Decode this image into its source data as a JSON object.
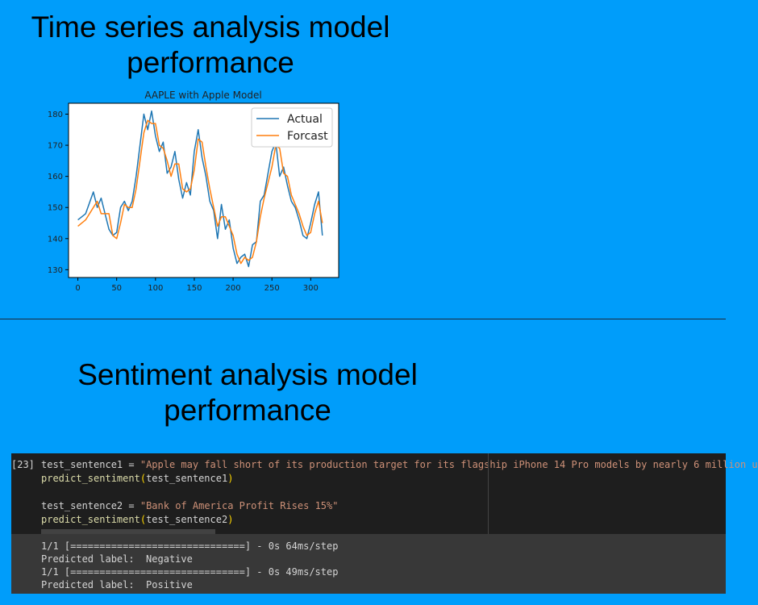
{
  "headings": {
    "time_series": [
      "Time series analysis model",
      "performance"
    ],
    "sentiment": [
      "Sentiment analysis model",
      "performance"
    ]
  },
  "chart_data": {
    "type": "line",
    "title": "AAPLE with Apple Model",
    "xlabel": "",
    "ylabel": "",
    "xlim": [
      -12,
      336
    ],
    "ylim": [
      127.5,
      183.5
    ],
    "xticks": [
      0,
      50,
      100,
      150,
      200,
      250,
      300
    ],
    "yticks": [
      130,
      140,
      150,
      160,
      170,
      180
    ],
    "legend_position": "top-right",
    "grid": false,
    "series": [
      {
        "name": "Actual",
        "color": "#1f77b4",
        "x": [
          0,
          10,
          20,
          25,
          30,
          40,
          45,
          50,
          55,
          60,
          65,
          70,
          75,
          80,
          85,
          90,
          95,
          100,
          105,
          110,
          115,
          120,
          125,
          130,
          135,
          140,
          145,
          150,
          155,
          160,
          165,
          170,
          175,
          180,
          185,
          190,
          195,
          200,
          205,
          210,
          215,
          220,
          225,
          230,
          235,
          240,
          245,
          250,
          255,
          260,
          265,
          270,
          275,
          280,
          285,
          290,
          295,
          300,
          305,
          310,
          315
        ],
        "y": [
          146,
          148,
          155,
          150,
          153,
          143,
          141,
          142,
          150,
          152,
          149,
          152,
          160,
          170,
          180,
          175,
          181,
          173,
          168,
          171,
          161,
          163,
          168,
          159,
          153,
          158,
          154,
          168,
          175,
          166,
          160,
          152,
          149,
          140,
          151,
          143,
          146,
          137,
          132,
          134,
          135,
          131,
          138,
          139,
          152,
          154,
          161,
          168,
          171,
          160,
          163,
          157,
          152,
          150,
          146,
          141,
          140,
          145,
          151,
          155,
          141
        ]
      },
      {
        "name": "Forcast",
        "color": "#ff7f0e",
        "x": [
          0,
          10,
          20,
          25,
          30,
          40,
          45,
          50,
          55,
          60,
          65,
          70,
          75,
          80,
          85,
          90,
          95,
          100,
          105,
          110,
          115,
          120,
          125,
          130,
          135,
          140,
          145,
          150,
          155,
          160,
          165,
          170,
          175,
          180,
          185,
          190,
          195,
          200,
          205,
          210,
          215,
          220,
          225,
          230,
          235,
          240,
          245,
          250,
          255,
          260,
          265,
          270,
          275,
          280,
          285,
          290,
          295,
          300,
          305,
          310,
          315
        ],
        "y": [
          144,
          146,
          150,
          152,
          148,
          148,
          141,
          140,
          145,
          151,
          150,
          150,
          156,
          165,
          174,
          178,
          177,
          177,
          170,
          169,
          165,
          160,
          164,
          164,
          156,
          155,
          156,
          162,
          172,
          171,
          163,
          156,
          150,
          144,
          147,
          147,
          144,
          141,
          135,
          132,
          134,
          133,
          134,
          139,
          147,
          153,
          158,
          163,
          170,
          169,
          161,
          160,
          154,
          151,
          148,
          144,
          141,
          142,
          148,
          152,
          145
        ]
      }
    ]
  },
  "notebook": {
    "cell_number": "[23]",
    "code": {
      "line1": {
        "var": "test_sentence1",
        "op": " = ",
        "str": "\"Apple may fall short of its production target for its flagship iPhone 14 Pro models by nearly 6 million u"
      },
      "line2": {
        "fn": "predict_sentiment",
        "open": "(",
        "arg": "test_sentence1",
        "close": ")"
      },
      "line3": {
        "var": "test_sentence2",
        "op": " = ",
        "str": "\"Bank of America Profit Rises 15%\""
      },
      "line4": {
        "fn": "predict_sentiment",
        "open": "(",
        "arg": "test_sentence2",
        "close": ")"
      }
    },
    "output": [
      "1/1 [==============================] - 0s 64ms/step",
      "Predicted label:  Negative",
      "1/1 [==============================] - 0s 49ms/step",
      "Predicted label:  Positive"
    ]
  }
}
